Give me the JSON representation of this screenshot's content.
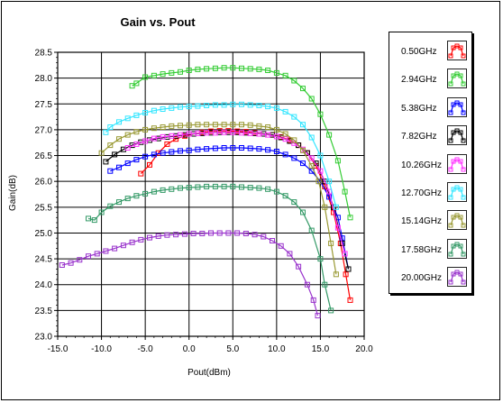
{
  "chart_data": {
    "type": "line",
    "title": "Gain vs. Pout",
    "xlabel": "Pout(dBm)",
    "ylabel": "Gain(dB)",
    "xlim": [
      -15,
      20
    ],
    "ylim": [
      23.0,
      28.5
    ],
    "xticks": [
      "-15.0",
      "-10.0",
      "-5.0",
      "0.0",
      "5.0",
      "10.0",
      "15.0",
      "20.0"
    ],
    "yticks": [
      "23.0",
      "23.5",
      "24.0",
      "24.5",
      "25.0",
      "25.5",
      "26.0",
      "26.5",
      "27.0",
      "27.5",
      "28.0",
      "28.5"
    ],
    "grid": true,
    "legend_position": "right",
    "series": [
      {
        "name": "0.50GHz",
        "color": "#ff0000",
        "x": [
          -5.5,
          -4.5,
          -3.5,
          -2.5,
          -1.5,
          -0.5,
          0.5,
          1.5,
          2.5,
          3.5,
          4.5,
          5.5,
          6.5,
          7.5,
          8.5,
          9.5,
          10.5,
          11.5,
          12.5,
          13.5,
          14.5,
          15.5,
          16.5,
          17.3,
          17.9,
          18.4
        ],
        "y": [
          26.15,
          26.32,
          26.55,
          26.72,
          26.82,
          26.88,
          26.92,
          26.95,
          26.97,
          26.98,
          26.98,
          26.97,
          26.96,
          26.94,
          26.92,
          26.9,
          26.86,
          26.8,
          26.7,
          26.55,
          26.3,
          25.9,
          25.4,
          24.8,
          24.2,
          23.7
        ]
      },
      {
        "name": "2.94GHz",
        "color": "#33cc33",
        "x": [
          -6.5,
          -6.0,
          -5.0,
          -4.0,
          -3.0,
          -2.0,
          -1.0,
          0.0,
          1.0,
          2.0,
          3.0,
          4.0,
          5.0,
          6.0,
          7.0,
          8.0,
          9.0,
          10.0,
          11.0,
          12.0,
          13.0,
          14.0,
          15.0,
          16.0,
          17.0,
          17.8,
          18.4
        ],
        "y": [
          27.85,
          27.9,
          28.02,
          28.05,
          28.08,
          28.1,
          28.12,
          28.15,
          28.17,
          28.18,
          28.19,
          28.2,
          28.2,
          28.19,
          28.18,
          28.17,
          28.15,
          28.1,
          28.05,
          27.95,
          27.8,
          27.6,
          27.3,
          26.9,
          26.4,
          25.8,
          25.3
        ]
      },
      {
        "name": "5.38GHz",
        "color": "#0000ff",
        "x": [
          -9.0,
          -8.0,
          -7.0,
          -6.0,
          -5.0,
          -4.0,
          -3.0,
          -2.0,
          -1.0,
          0.0,
          1.0,
          2.0,
          3.0,
          4.0,
          5.0,
          6.0,
          7.0,
          8.0,
          9.0,
          10.0,
          11.0,
          12.0,
          13.0,
          14.0,
          15.0,
          16.0,
          17.0,
          17.5,
          18.2
        ],
        "y": [
          26.2,
          26.27,
          26.35,
          26.42,
          26.48,
          26.52,
          26.55,
          26.57,
          26.59,
          26.6,
          26.62,
          26.63,
          26.64,
          26.65,
          26.65,
          26.65,
          26.64,
          26.63,
          26.61,
          26.58,
          26.52,
          26.45,
          26.35,
          26.2,
          26.0,
          25.7,
          25.3,
          24.9,
          24.3
        ]
      },
      {
        "name": "7.82GHz",
        "color": "#000000",
        "x": [
          -9.5,
          -8.5,
          -7.5,
          -6.5,
          -5.5,
          -4.5,
          -3.5,
          -2.5,
          -1.5,
          -0.5,
          0.5,
          1.5,
          2.5,
          3.5,
          4.5,
          5.5,
          6.5,
          7.5,
          8.5,
          9.5,
          10.5,
          11.5,
          12.5,
          13.5,
          14.5,
          15.5,
          16.5,
          17.5,
          18.2
        ],
        "y": [
          26.38,
          26.52,
          26.62,
          26.7,
          26.76,
          26.8,
          26.83,
          26.86,
          26.88,
          26.9,
          26.92,
          26.93,
          26.94,
          26.95,
          26.95,
          26.95,
          26.94,
          26.93,
          26.92,
          26.9,
          26.85,
          26.78,
          26.7,
          26.55,
          26.35,
          26.0,
          25.5,
          24.8,
          24.3
        ]
      },
      {
        "name": "10.26GHz",
        "color": "#ff33ff",
        "x": [
          -7.0,
          -6.0,
          -5.0,
          -4.0,
          -3.0,
          -2.0,
          -1.0,
          0.0,
          1.0,
          2.0,
          3.0,
          4.0,
          5.0,
          6.0,
          7.0,
          8.0,
          9.0,
          10.0,
          11.0,
          12.0,
          13.0,
          14.0,
          15.0,
          16.0,
          17.0,
          17.8
        ],
        "y": [
          26.65,
          26.72,
          26.78,
          26.83,
          26.86,
          26.88,
          26.9,
          26.92,
          26.93,
          26.94,
          26.94,
          26.95,
          26.95,
          26.94,
          26.93,
          26.92,
          26.9,
          26.87,
          26.82,
          26.74,
          26.62,
          26.45,
          26.2,
          25.8,
          25.1,
          24.6
        ]
      },
      {
        "name": "12.70GHz",
        "color": "#33e6ff",
        "x": [
          -9.5,
          -9.0,
          -8.0,
          -7.0,
          -6.0,
          -5.0,
          -4.0,
          -3.0,
          -2.0,
          -1.0,
          0.0,
          1.0,
          2.0,
          3.0,
          4.0,
          5.0,
          6.0,
          7.0,
          8.0,
          9.0,
          10.0,
          11.0,
          12.0,
          13.0,
          14.0,
          15.0,
          16.0,
          16.8
        ],
        "y": [
          26.95,
          27.05,
          27.15,
          27.22,
          27.28,
          27.33,
          27.37,
          27.4,
          27.42,
          27.44,
          27.45,
          27.46,
          27.47,
          27.48,
          27.48,
          27.49,
          27.49,
          27.48,
          27.47,
          27.45,
          27.42,
          27.35,
          27.25,
          27.1,
          26.85,
          26.5,
          26.0,
          25.5
        ]
      },
      {
        "name": "15.14GHz",
        "color": "#999933",
        "x": [
          -10.0,
          -9.0,
          -8.0,
          -7.0,
          -6.0,
          -5.0,
          -4.0,
          -3.0,
          -2.0,
          -1.0,
          0.0,
          1.0,
          2.0,
          3.0,
          4.0,
          5.0,
          6.0,
          7.0,
          8.0,
          9.0,
          10.0,
          11.0,
          12.0,
          13.0,
          14.0,
          14.8,
          15.5,
          16.2,
          16.8
        ],
        "y": [
          26.55,
          26.7,
          26.82,
          26.9,
          26.96,
          27.0,
          27.03,
          27.05,
          27.07,
          27.08,
          27.09,
          27.1,
          27.1,
          27.1,
          27.1,
          27.1,
          27.1,
          27.09,
          27.07,
          27.05,
          27.0,
          26.92,
          26.8,
          26.6,
          26.3,
          26.0,
          25.5,
          24.8,
          24.2
        ]
      },
      {
        "name": "17.58GHz",
        "color": "#339966",
        "x": [
          -11.5,
          -10.8,
          -10.0,
          -9.0,
          -8.0,
          -7.0,
          -6.0,
          -5.0,
          -4.0,
          -3.0,
          -2.0,
          -1.0,
          0.0,
          1.0,
          2.0,
          3.0,
          4.0,
          5.0,
          6.0,
          7.0,
          8.0,
          9.0,
          10.0,
          11.0,
          12.0,
          13.0,
          14.0,
          15.0,
          15.5,
          16.2
        ],
        "y": [
          25.28,
          25.25,
          25.4,
          25.52,
          25.6,
          25.67,
          25.72,
          25.76,
          25.8,
          25.83,
          25.85,
          25.87,
          25.88,
          25.89,
          25.9,
          25.9,
          25.9,
          25.9,
          25.89,
          25.88,
          25.87,
          25.85,
          25.8,
          25.72,
          25.6,
          25.4,
          25.05,
          24.5,
          24.0,
          23.5
        ]
      },
      {
        "name": "20.00GHz",
        "color": "#9933cc",
        "x": [
          -14.5,
          -13.5,
          -12.5,
          -11.5,
          -10.5,
          -9.5,
          -8.5,
          -7.5,
          -6.5,
          -5.5,
          -4.5,
          -3.5,
          -2.5,
          -1.5,
          -0.5,
          0.5,
          1.5,
          2.5,
          3.5,
          4.5,
          5.5,
          6.5,
          7.5,
          8.5,
          9.5,
          10.5,
          11.5,
          12.5,
          13.5,
          14.2,
          14.7
        ],
        "y": [
          24.38,
          24.42,
          24.48,
          24.55,
          24.6,
          24.65,
          24.7,
          24.76,
          24.82,
          24.87,
          24.91,
          24.94,
          24.96,
          24.97,
          24.98,
          24.99,
          24.99,
          25.0,
          25.0,
          25.0,
          25.0,
          24.99,
          24.97,
          24.93,
          24.85,
          24.75,
          24.6,
          24.35,
          24.0,
          23.7,
          23.4
        ]
      }
    ]
  }
}
